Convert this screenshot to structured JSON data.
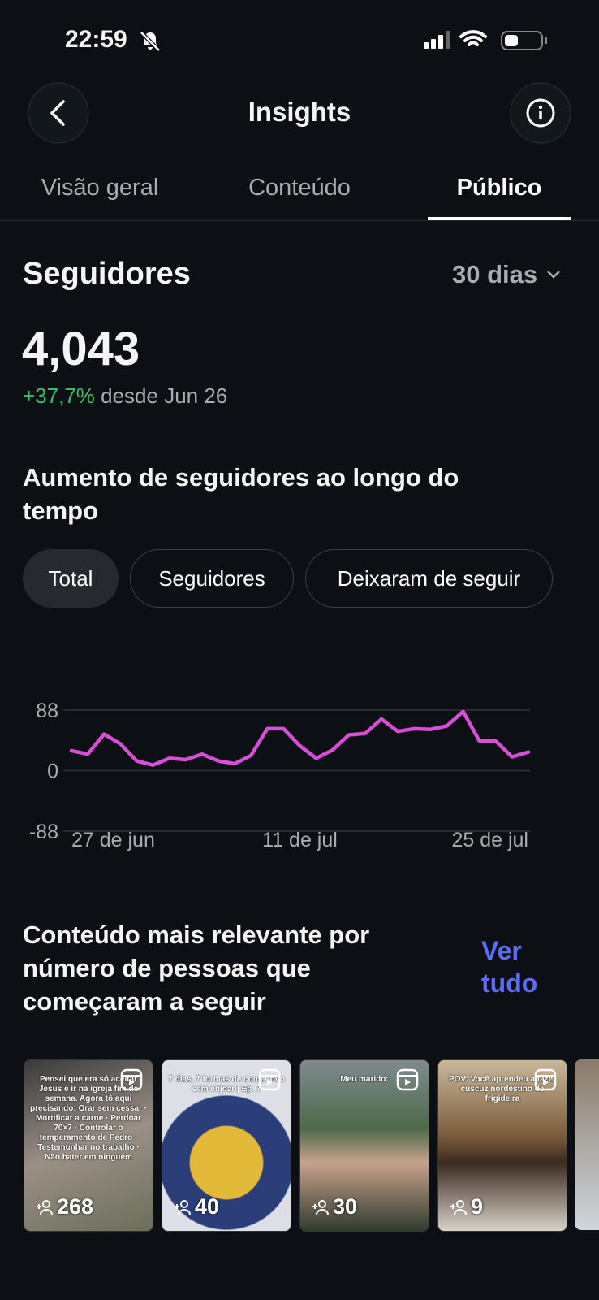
{
  "status_bar": {
    "time": "22:59"
  },
  "header": {
    "title": "Insights"
  },
  "tabs": [
    "Visão geral",
    "Conteúdo",
    "Público"
  ],
  "active_tab": 2,
  "followers": {
    "title": "Seguidores",
    "period": "30 dias",
    "count": "4,043",
    "change": "+37,7%",
    "since": "desde Jun 26"
  },
  "growth": {
    "title": "Aumento de seguidores ao longo do tempo",
    "filters": [
      "Total",
      "Seguidores",
      "Deixaram de seguir"
    ],
    "active_filter": 0,
    "chart_data": {
      "type": "line",
      "categories": [
        "27 de jun",
        null,
        null,
        null,
        null,
        null,
        null,
        null,
        null,
        null,
        null,
        null,
        null,
        null,
        "11 de jul",
        null,
        null,
        null,
        null,
        null,
        null,
        null,
        null,
        null,
        null,
        null,
        null,
        null,
        "25 de jul"
      ],
      "values": [
        29,
        24,
        53,
        39,
        14,
        8,
        18,
        16,
        24,
        14,
        10,
        22,
        61,
        61,
        36,
        18,
        30,
        52,
        54,
        75,
        57,
        61,
        60,
        65,
        86,
        43,
        43,
        20,
        27
      ],
      "color": "#d94ed6",
      "ylim": [
        -88,
        88
      ],
      "yticks": [
        -88,
        0,
        88
      ],
      "grid": true
    }
  },
  "top_content": {
    "title": "Conteúdo mais relevante por número de pessoas que começaram a seguir",
    "link": "Ver tudo",
    "posts": [
      {
        "caption": "Pensei que era só aceitar Jesus e ir na igreja fim de semana. Agora tô aqui precisando: Orar sem cessar · Mortificar a carne · Perdoar 70×7 · Controlar o temperamento de Pedro · Testemunhar no trabalho · Não bater em ninguém",
        "count": 268
      },
      {
        "caption": "7 dias, 7 formas de comer ovo sem enjoar | Ep. 7",
        "count": 40
      },
      {
        "caption": "Meu marido:",
        "count": 30
      },
      {
        "caption": "POV: Você aprendeu a fazer cuscuz nordestino de frigideira",
        "count": 9
      }
    ]
  }
}
